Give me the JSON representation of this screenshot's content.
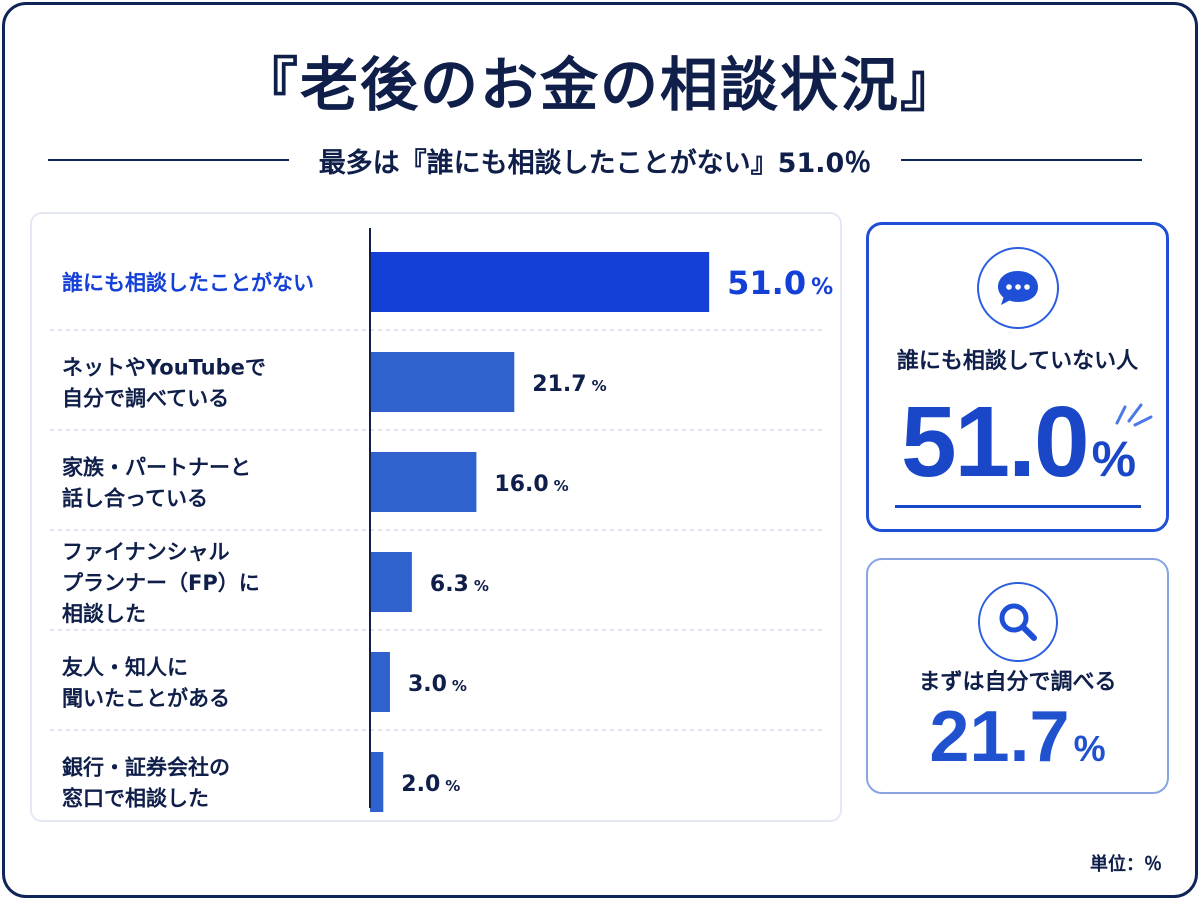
{
  "title": "『老後のお金の相談状況』",
  "subtitle": "最多は『誰にも相談したことがない』51.0％",
  "unit_note": "単位：％",
  "colors": {
    "navy": "#0f1f4a",
    "highlight_bar": "#1540d8",
    "bar": "#2f62cc",
    "highlight_text": "#1540d8",
    "accent": "#1a47c8"
  },
  "chart_data": {
    "type": "bar",
    "orientation": "horizontal",
    "categories": [
      [
        "誰にも相談したことがない"
      ],
      [
        "ネットやYouTubeで",
        "自分で調べている"
      ],
      [
        "家族・パートナーと",
        "話し合っている"
      ],
      [
        "ファイナンシャル",
        "プランナー（FP）に",
        "相談した"
      ],
      [
        "友人・知人に",
        "聞いたことがある"
      ],
      [
        "銀行・証券会社の",
        "窓口で相談した"
      ]
    ],
    "values": [
      51.0,
      21.7,
      16.0,
      6.3,
      3.0,
      2.0
    ],
    "value_labels": [
      "51.0",
      "21.7",
      "16.0",
      "6.3",
      "3.0",
      "2.0"
    ],
    "unit_suffix": "%",
    "highlight_index": 0,
    "xlim": [
      0,
      100
    ],
    "grid": false
  },
  "cards": [
    {
      "icon": "speech-bubble-icon",
      "label": "誰にも相談していない人",
      "value": "51.0",
      "suffix": "%"
    },
    {
      "icon": "magnifier-icon",
      "label": "まずは自分で調べる",
      "value": "21.7",
      "suffix": "%"
    }
  ]
}
